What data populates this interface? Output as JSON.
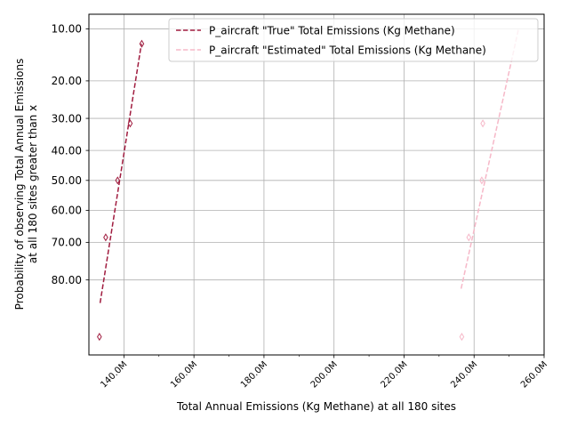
{
  "chart_data": {
    "type": "line",
    "xlabel": "Total Annual Emissions (Kg Methane) at all 180 sites",
    "ylabel_lines": [
      "Probability of observing Total Annual Emissions",
      "at all 180 sites greater than x"
    ],
    "x_ticks": [
      {
        "value": 140,
        "label": "140.0M"
      },
      {
        "value": 160,
        "label": "160.0M"
      },
      {
        "value": 180,
        "label": "180.0M"
      },
      {
        "value": 200,
        "label": "200.0M"
      },
      {
        "value": 220,
        "label": "220.0M"
      },
      {
        "value": 240,
        "label": "240.0M"
      },
      {
        "value": 260,
        "label": "260.0M"
      }
    ],
    "y_ticks": [
      {
        "value": 10,
        "label": "10.00"
      },
      {
        "value": 20,
        "label": "20.00"
      },
      {
        "value": 30,
        "label": "30.00"
      },
      {
        "value": 40,
        "label": "40.00"
      },
      {
        "value": 50,
        "label": "50.00"
      },
      {
        "value": 60,
        "label": "60.00"
      },
      {
        "value": 70,
        "label": "70.00"
      },
      {
        "value": 80,
        "label": "80.00"
      }
    ],
    "xlim": [
      130,
      260
    ],
    "y_scale": "probability",
    "ylim": [
      8,
      93
    ],
    "grid": true,
    "legend_position": "top-right",
    "series": [
      {
        "name": "P_aircraft \"True\" Total Emissions (Kg Methane)",
        "color": "#a01c3f",
        "line_style": "dashed",
        "marker": "thin-diamond",
        "points": [
          {
            "x": 133.0,
            "y": 90.7
          },
          {
            "x": 134.8,
            "y": 68.5
          },
          {
            "x": 138.2,
            "y": 50.0
          },
          {
            "x": 141.8,
            "y": 31.5
          },
          {
            "x": 145.1,
            "y": 12.4
          }
        ],
        "fit_line": [
          [
            133.2,
            85.0
          ],
          [
            145.0,
            12.4
          ]
        ]
      },
      {
        "name": "P_aircraft \"Estimated\" Total Emissions (Kg Methane)",
        "color": "#f6b8c8",
        "line_style": "dashed",
        "marker": "thin-diamond",
        "points": [
          {
            "x": 236.5,
            "y": 90.7
          },
          {
            "x": 238.5,
            "y": 68.5
          },
          {
            "x": 242.2,
            "y": 50.0
          },
          {
            "x": 242.5,
            "y": 31.5
          }
        ],
        "fit_line": [
          [
            236.3,
            82.0
          ],
          [
            252.7,
            10.0
          ]
        ]
      }
    ]
  }
}
